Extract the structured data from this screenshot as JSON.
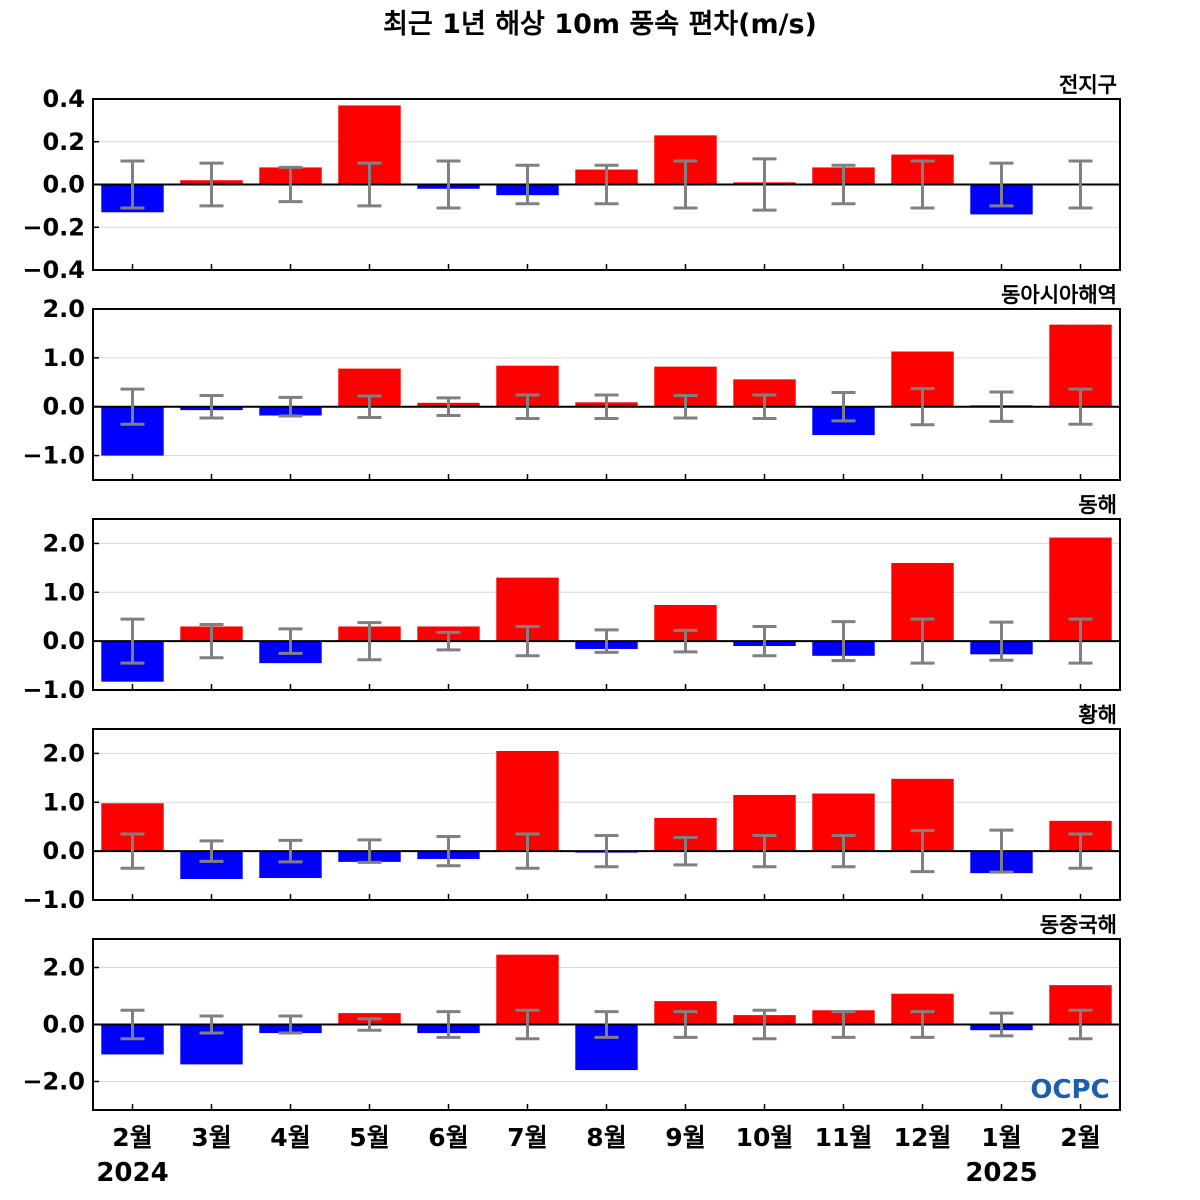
{
  "chart_data": {
    "type": "bar",
    "title": "최근 1년 해상 10m 풍속 편차(m/s)",
    "categories": [
      "2월",
      "3월",
      "4월",
      "5월",
      "6월",
      "7월",
      "8월",
      "9월",
      "10월",
      "11월",
      "12월",
      "1월",
      "2월"
    ],
    "year_labels": [
      {
        "index": 0,
        "label": "2024"
      },
      {
        "index": 11,
        "label": "2025"
      }
    ],
    "logo": "OCPC",
    "colors": {
      "positive": "#ff0000",
      "negative": "#0000ff",
      "error_bar": "#808080",
      "zero_line": "#000000",
      "grid": "#d9d9d9"
    },
    "panels": [
      {
        "name": "전지구",
        "ylim": [
          -0.4,
          0.4
        ],
        "yticks": [
          -0.4,
          -0.2,
          0.0,
          0.2,
          0.4
        ],
        "ytick_labels": [
          "−0.4",
          "−0.2",
          "0.0",
          "0.2",
          "0.4"
        ],
        "values": [
          -0.13,
          0.02,
          0.08,
          0.37,
          -0.02,
          -0.05,
          0.07,
          0.23,
          0.01,
          0.08,
          0.14,
          -0.14,
          0.0
        ],
        "error": [
          0.11,
          0.1,
          0.08,
          0.1,
          0.11,
          0.09,
          0.09,
          0.11,
          0.12,
          0.09,
          0.11,
          0.1,
          0.11
        ]
      },
      {
        "name": "동아시아해역",
        "ylim": [
          -1.5,
          2.0
        ],
        "yticks": [
          -1.0,
          0.0,
          1.0,
          2.0
        ],
        "ytick_labels": [
          "−1.0",
          "0.0",
          "1.0",
          "2.0"
        ],
        "values": [
          -1.0,
          -0.07,
          -0.18,
          0.78,
          0.08,
          0.84,
          0.09,
          0.82,
          0.56,
          -0.58,
          1.13,
          0.03,
          1.68
        ],
        "error": [
          0.36,
          0.23,
          0.19,
          0.22,
          0.18,
          0.24,
          0.24,
          0.23,
          0.24,
          0.29,
          0.37,
          0.3,
          0.36
        ]
      },
      {
        "name": "동해",
        "ylim": [
          -1.0,
          2.5
        ],
        "yticks": [
          -1.0,
          0.0,
          1.0,
          2.0
        ],
        "ytick_labels": [
          "−1.0",
          "0.0",
          "1.0",
          "2.0"
        ],
        "values": [
          -0.83,
          0.3,
          -0.45,
          0.3,
          0.3,
          1.3,
          -0.16,
          0.74,
          -0.1,
          -0.3,
          1.6,
          -0.27,
          2.12
        ],
        "error": [
          0.45,
          0.34,
          0.25,
          0.38,
          0.18,
          0.3,
          0.23,
          0.22,
          0.3,
          0.4,
          0.45,
          0.39,
          0.45
        ]
      },
      {
        "name": "황해",
        "ylim": [
          -1.0,
          2.5
        ],
        "yticks": [
          -1.0,
          0.0,
          1.0,
          2.0
        ],
        "ytick_labels": [
          "−1.0",
          "0.0",
          "1.0",
          "2.0"
        ],
        "values": [
          0.98,
          -0.57,
          -0.55,
          -0.22,
          -0.16,
          2.05,
          -0.03,
          0.68,
          1.15,
          1.18,
          1.48,
          -0.45,
          0.62
        ],
        "error": [
          0.35,
          0.21,
          0.22,
          0.23,
          0.3,
          0.35,
          0.32,
          0.28,
          0.32,
          0.32,
          0.42,
          0.43,
          0.35
        ]
      },
      {
        "name": "동중국해",
        "ylim": [
          -3.0,
          3.0
        ],
        "yticks": [
          -2.0,
          0.0,
          2.0
        ],
        "ytick_labels": [
          "−2.0",
          "0.0",
          "2.0"
        ],
        "values": [
          -1.05,
          -1.4,
          -0.3,
          0.4,
          -0.3,
          2.45,
          -1.6,
          0.82,
          0.33,
          0.5,
          1.08,
          -0.2,
          1.38
        ],
        "error": [
          0.5,
          0.3,
          0.3,
          0.2,
          0.45,
          0.5,
          0.45,
          0.45,
          0.5,
          0.45,
          0.45,
          0.4,
          0.5
        ]
      }
    ]
  }
}
